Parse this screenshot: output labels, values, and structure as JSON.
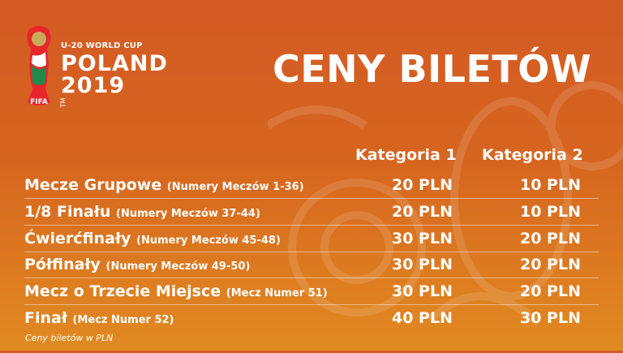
{
  "logo": {
    "line1": "U-20 WORLD CUP",
    "line2": "POLAND",
    "line3": "2019",
    "badge": "FIFA",
    "tm": "TM"
  },
  "title": "CENY BILETÓW",
  "table": {
    "headers": [
      "Kategoria 1",
      "Kategoria 2"
    ],
    "rows": [
      {
        "name": "Mecze Grupowe",
        "detail": "(Numery Meczów 1-36)",
        "cat1": "20 PLN",
        "cat2": "10 PLN"
      },
      {
        "name": "1/8 Finału",
        "detail": "(Numery Meczów 37-44)",
        "cat1": "20 PLN",
        "cat2": "10 PLN"
      },
      {
        "name": "Ćwierćfinały",
        "detail": "(Numery Meczów 45-48)",
        "cat1": "30 PLN",
        "cat2": "20 PLN"
      },
      {
        "name": "Półfinały",
        "detail": "(Numery Meczów 49-50)",
        "cat1": "30 PLN",
        "cat2": "20 PLN"
      },
      {
        "name": "Mecz o Trzecie Miejsce",
        "detail": "(Mecz Numer 51)",
        "cat1": "30 PLN",
        "cat2": "20 PLN"
      },
      {
        "name": "Finał",
        "detail": "(Mecz Numer 52)",
        "cat1": "40 PLN",
        "cat2": "30 PLN"
      }
    ]
  },
  "footnote": "Ceny biletów w PLN",
  "colors": {
    "background_top": "#d45a24",
    "background_bottom": "#e18a21",
    "text": "#ffffff"
  }
}
